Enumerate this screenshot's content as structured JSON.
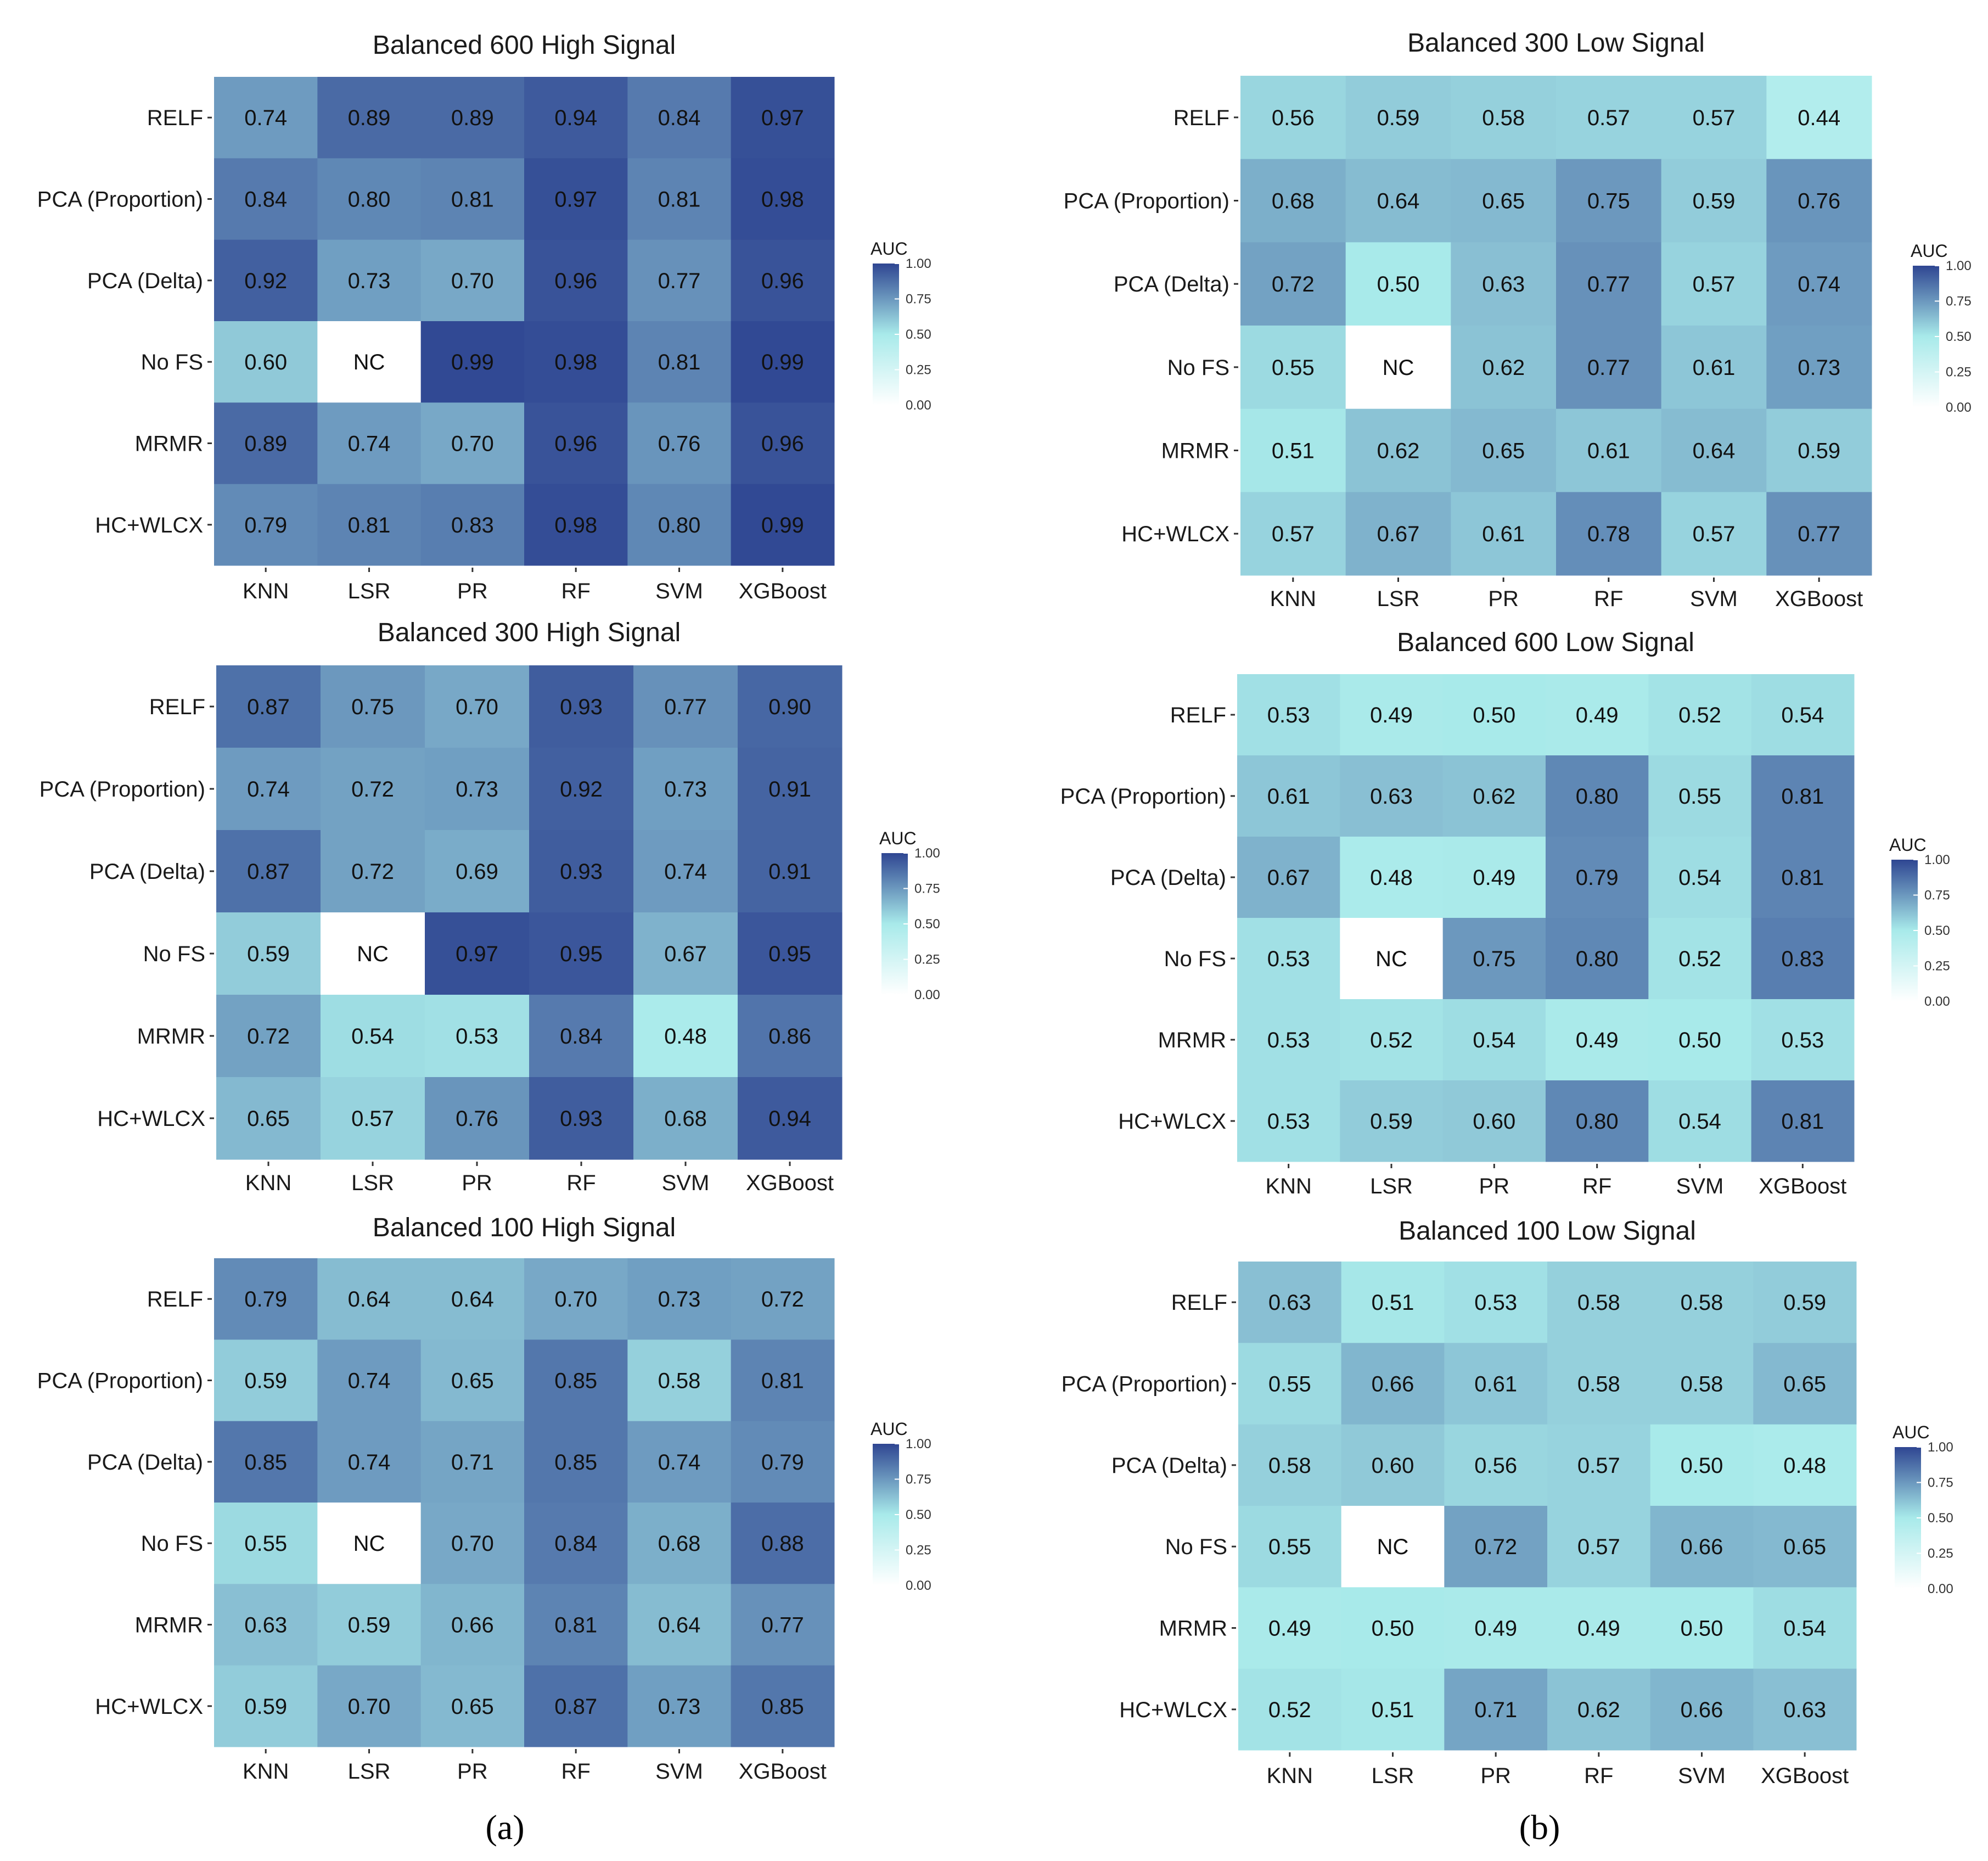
{
  "figure": {
    "panel_labels": [
      "(a)",
      "(b)"
    ]
  },
  "colors": {
    "low": "#ffffff",
    "mid": "#a8eaea",
    "high": "#2f4692",
    "nc_fill": "#ffffff"
  },
  "chart_data": [
    {
      "type": "heatmap",
      "title": "Balanced 600 High Signal",
      "rows": [
        "RELF",
        "PCA (Proportion)",
        "PCA (Delta)",
        "No FS",
        "MRMR",
        "HC+WLCX"
      ],
      "columns": [
        "KNN",
        "LSR",
        "PR",
        "RF",
        "SVM",
        "XGBoost"
      ],
      "values": [
        [
          "0.74",
          "0.89",
          "0.89",
          "0.94",
          "0.84",
          "0.97"
        ],
        [
          "0.84",
          "0.80",
          "0.81",
          "0.97",
          "0.81",
          "0.98"
        ],
        [
          "0.92",
          "0.73",
          "0.70",
          "0.96",
          "0.77",
          "0.96"
        ],
        [
          "0.60",
          "NC",
          "0.99",
          "0.98",
          "0.81",
          "0.99"
        ],
        [
          "0.89",
          "0.74",
          "0.70",
          "0.96",
          "0.76",
          "0.96"
        ],
        [
          "0.79",
          "0.81",
          "0.83",
          "0.98",
          "0.80",
          "0.99"
        ]
      ],
      "legend": {
        "title": "AUC",
        "ticks": [
          "1.00",
          "0.75",
          "0.50",
          "0.25",
          "0.00"
        ],
        "range": [
          0,
          1
        ]
      }
    },
    {
      "type": "heatmap",
      "title": "Balanced 300 Low Signal",
      "rows": [
        "RELF",
        "PCA (Proportion)",
        "PCA (Delta)",
        "No FS",
        "MRMR",
        "HC+WLCX"
      ],
      "columns": [
        "KNN",
        "LSR",
        "PR",
        "RF",
        "SVM",
        "XGBoost"
      ],
      "values": [
        [
          "0.56",
          "0.59",
          "0.58",
          "0.57",
          "0.57",
          "0.44"
        ],
        [
          "0.68",
          "0.64",
          "0.65",
          "0.75",
          "0.59",
          "0.76"
        ],
        [
          "0.72",
          "0.50",
          "0.63",
          "0.77",
          "0.57",
          "0.74"
        ],
        [
          "0.55",
          "NC",
          "0.62",
          "0.77",
          "0.61",
          "0.73"
        ],
        [
          "0.51",
          "0.62",
          "0.65",
          "0.61",
          "0.64",
          "0.59"
        ],
        [
          "0.57",
          "0.67",
          "0.61",
          "0.78",
          "0.57",
          "0.77"
        ]
      ],
      "legend": {
        "title": "AUC",
        "ticks": [
          "1.00",
          "0.75",
          "0.50",
          "0.25",
          "0.00"
        ],
        "range": [
          0,
          1
        ]
      }
    },
    {
      "type": "heatmap",
      "title": "Balanced 300 High Signal",
      "rows": [
        "RELF",
        "PCA (Proportion)",
        "PCA (Delta)",
        "No FS",
        "MRMR",
        "HC+WLCX"
      ],
      "columns": [
        "KNN",
        "LSR",
        "PR",
        "RF",
        "SVM",
        "XGBoost"
      ],
      "values": [
        [
          "0.87",
          "0.75",
          "0.70",
          "0.93",
          "0.77",
          "0.90"
        ],
        [
          "0.74",
          "0.72",
          "0.73",
          "0.92",
          "0.73",
          "0.91"
        ],
        [
          "0.87",
          "0.72",
          "0.69",
          "0.93",
          "0.74",
          "0.91"
        ],
        [
          "0.59",
          "NC",
          "0.97",
          "0.95",
          "0.67",
          "0.95"
        ],
        [
          "0.72",
          "0.54",
          "0.53",
          "0.84",
          "0.48",
          "0.86"
        ],
        [
          "0.65",
          "0.57",
          "0.76",
          "0.93",
          "0.68",
          "0.94"
        ]
      ],
      "legend": {
        "title": "AUC",
        "ticks": [
          "1.00",
          "0.75",
          "0.50",
          "0.25",
          "0.00"
        ],
        "range": [
          0,
          1
        ]
      }
    },
    {
      "type": "heatmap",
      "title": "Balanced 600 Low Signal",
      "rows": [
        "RELF",
        "PCA (Proportion)",
        "PCA (Delta)",
        "No FS",
        "MRMR",
        "HC+WLCX"
      ],
      "columns": [
        "KNN",
        "LSR",
        "PR",
        "RF",
        "SVM",
        "XGBoost"
      ],
      "values": [
        [
          "0.53",
          "0.49",
          "0.50",
          "0.49",
          "0.52",
          "0.54"
        ],
        [
          "0.61",
          "0.63",
          "0.62",
          "0.80",
          "0.55",
          "0.81"
        ],
        [
          "0.67",
          "0.48",
          "0.49",
          "0.79",
          "0.54",
          "0.81"
        ],
        [
          "0.53",
          "NC",
          "0.75",
          "0.80",
          "0.52",
          "0.83"
        ],
        [
          "0.53",
          "0.52",
          "0.54",
          "0.49",
          "0.50",
          "0.53"
        ],
        [
          "0.53",
          "0.59",
          "0.60",
          "0.80",
          "0.54",
          "0.81"
        ]
      ],
      "legend": {
        "title": "AUC",
        "ticks": [
          "1.00",
          "0.75",
          "0.50",
          "0.25",
          "0.00"
        ],
        "range": [
          0,
          1
        ]
      }
    },
    {
      "type": "heatmap",
      "title": "Balanced 100 High Signal",
      "rows": [
        "RELF",
        "PCA (Proportion)",
        "PCA (Delta)",
        "No FS",
        "MRMR",
        "HC+WLCX"
      ],
      "columns": [
        "KNN",
        "LSR",
        "PR",
        "RF",
        "SVM",
        "XGBoost"
      ],
      "values": [
        [
          "0.79",
          "0.64",
          "0.64",
          "0.70",
          "0.73",
          "0.72"
        ],
        [
          "0.59",
          "0.74",
          "0.65",
          "0.85",
          "0.58",
          "0.81"
        ],
        [
          "0.85",
          "0.74",
          "0.71",
          "0.85",
          "0.74",
          "0.79"
        ],
        [
          "0.55",
          "NC",
          "0.70",
          "0.84",
          "0.68",
          "0.88"
        ],
        [
          "0.63",
          "0.59",
          "0.66",
          "0.81",
          "0.64",
          "0.77"
        ],
        [
          "0.59",
          "0.70",
          "0.65",
          "0.87",
          "0.73",
          "0.85"
        ]
      ],
      "legend": {
        "title": "AUC",
        "ticks": [
          "1.00",
          "0.75",
          "0.50",
          "0.25",
          "0.00"
        ],
        "range": [
          0,
          1
        ]
      }
    },
    {
      "type": "heatmap",
      "title": "Balanced 100 Low Signal",
      "rows": [
        "RELF",
        "PCA (Proportion)",
        "PCA (Delta)",
        "No FS",
        "MRMR",
        "HC+WLCX"
      ],
      "columns": [
        "KNN",
        "LSR",
        "PR",
        "RF",
        "SVM",
        "XGBoost"
      ],
      "values": [
        [
          "0.63",
          "0.51",
          "0.53",
          "0.58",
          "0.58",
          "0.59"
        ],
        [
          "0.55",
          "0.66",
          "0.61",
          "0.58",
          "0.58",
          "0.65"
        ],
        [
          "0.58",
          "0.60",
          "0.56",
          "0.57",
          "0.50",
          "0.48"
        ],
        [
          "0.55",
          "NC",
          "0.72",
          "0.57",
          "0.66",
          "0.65"
        ],
        [
          "0.49",
          "0.50",
          "0.49",
          "0.49",
          "0.50",
          "0.54"
        ],
        [
          "0.52",
          "0.51",
          "0.71",
          "0.62",
          "0.66",
          "0.63"
        ]
      ],
      "legend": {
        "title": "AUC",
        "ticks": [
          "1.00",
          "0.75",
          "0.50",
          "0.25",
          "0.00"
        ],
        "range": [
          0,
          1
        ]
      }
    }
  ]
}
